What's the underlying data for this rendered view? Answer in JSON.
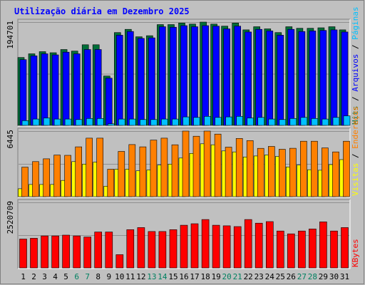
{
  "chart_data": {
    "type": "bar",
    "title": "Utilização diária em Dezembro 2025",
    "categories": [
      "1",
      "2",
      "3",
      "4",
      "5",
      "6",
      "7",
      "8",
      "9",
      "10",
      "11",
      "12",
      "13",
      "14",
      "15",
      "16",
      "17",
      "18",
      "19",
      "20",
      "21",
      "22",
      "23",
      "24",
      "25",
      "26",
      "27",
      "28",
      "29",
      "30",
      "31"
    ],
    "weekend_days": [
      "6",
      "7",
      "13",
      "14",
      "20",
      "21",
      "27",
      "28"
    ],
    "colors": {
      "background": "#c0c0c0",
      "frame": "#ffffff",
      "title": "#0000ff",
      "hits": "#006e3a",
      "files": "#0000ff",
      "pages": "#00c0ff",
      "visits": "#ffff00",
      "sites": "#ff8000",
      "kbytes": "#ff0000",
      "weekend_label": "#008060",
      "weekday_label": "#000000"
    },
    "panels": [
      {
        "id": "hits",
        "ymax_label": "194701",
        "ymax": 194701,
        "legend": [
          "Hits",
          "/",
          "Arquivos",
          "/",
          "Páginas"
        ],
        "legend_colors": [
          "#006e3a",
          "#000000",
          "#0000ff",
          "#000000",
          "#00c0ff"
        ],
        "series": [
          {
            "name": "Hits",
            "color": "#006e3a",
            "values": [
              128000,
              135000,
              139000,
              137000,
              143000,
              140000,
              152000,
              152000,
              93000,
              175000,
              181000,
              167000,
              169000,
              190000,
              190000,
              193000,
              191000,
              194701,
              191000,
              187000,
              193000,
              180000,
              186000,
              182000,
              175000,
              186000,
              183000,
              183000,
              184000,
              186000,
              180000
            ]
          },
          {
            "name": "Arquivos",
            "color": "#0000ff",
            "values": [
              124000,
              131000,
              135000,
              133000,
              138000,
              135000,
              143000,
              143000,
              89000,
              170000,
              177000,
              164000,
              165000,
              186000,
              185000,
              188000,
              186000,
              188000,
              187000,
              182000,
              187000,
              176000,
              181000,
              178000,
              170000,
              181000,
              177000,
              178000,
              179000,
              180000,
              176000
            ]
          },
          {
            "name": "Páginas",
            "color": "#00c0ff",
            "values": [
              9000,
              12000,
              14000,
              12000,
              12000,
              11000,
              13000,
              13000,
              3000,
              12000,
              12000,
              11000,
              11000,
              12000,
              12000,
              16000,
              15000,
              17000,
              15000,
              16000,
              17000,
              14000,
              15000,
              12000,
              11000,
              13000,
              15000,
              13000,
              12000,
              15000,
              18000
            ]
          }
        ]
      },
      {
        "id": "visits",
        "ymax_label": "6445",
        "ymax": 6445,
        "legend": [
          "Visitas",
          "/",
          "Endereços"
        ],
        "legend_colors": [
          "#ffff00",
          "#000000",
          "#ff8000"
        ],
        "series": [
          {
            "name": "Visitas",
            "color": "#ffff00",
            "values": [
              780,
              1200,
              1200,
              1200,
              1600,
              3450,
              3200,
              3400,
              1030,
              2700,
              2700,
              2540,
              2620,
              3100,
              3200,
              3800,
              4250,
              5200,
              5100,
              4500,
              4400,
              3900,
              4000,
              4100,
              3950,
              2920,
              3100,
              2650,
              2600,
              3150,
              3640
            ]
          },
          {
            "name": "Endereços",
            "color": "#ff8000",
            "values": [
              2900,
              3450,
              3720,
              4090,
              4060,
              4900,
              5750,
              5750,
              2700,
              4450,
              5120,
              4900,
              5560,
              5750,
              5100,
              6445,
              5940,
              6445,
              6150,
              4870,
              5720,
              5510,
              4750,
              4940,
              4660,
              4760,
              5450,
              5450,
              4790,
              4400,
              5450
            ]
          }
        ]
      },
      {
        "id": "kbytes",
        "ymax_label": "2520709",
        "ymax": 2520709,
        "legend": [
          "KBytes"
        ],
        "legend_colors": [
          "#ff0000"
        ],
        "series": [
          {
            "name": "KBytes",
            "color": "#ff0000",
            "values": [
              1110000,
              1140000,
              1230000,
              1230000,
              1260000,
              1230000,
              1190000,
              1380000,
              1380000,
              510000,
              1470000,
              1550000,
              1400000,
              1400000,
              1470000,
              1640000,
              1700000,
              1860000,
              1640000,
              1620000,
              1590000,
              1860000,
              1720000,
              1780000,
              1420000,
              1310000,
              1420000,
              1500000,
              1770000,
              1420000,
              1550000
            ]
          }
        ]
      }
    ]
  }
}
